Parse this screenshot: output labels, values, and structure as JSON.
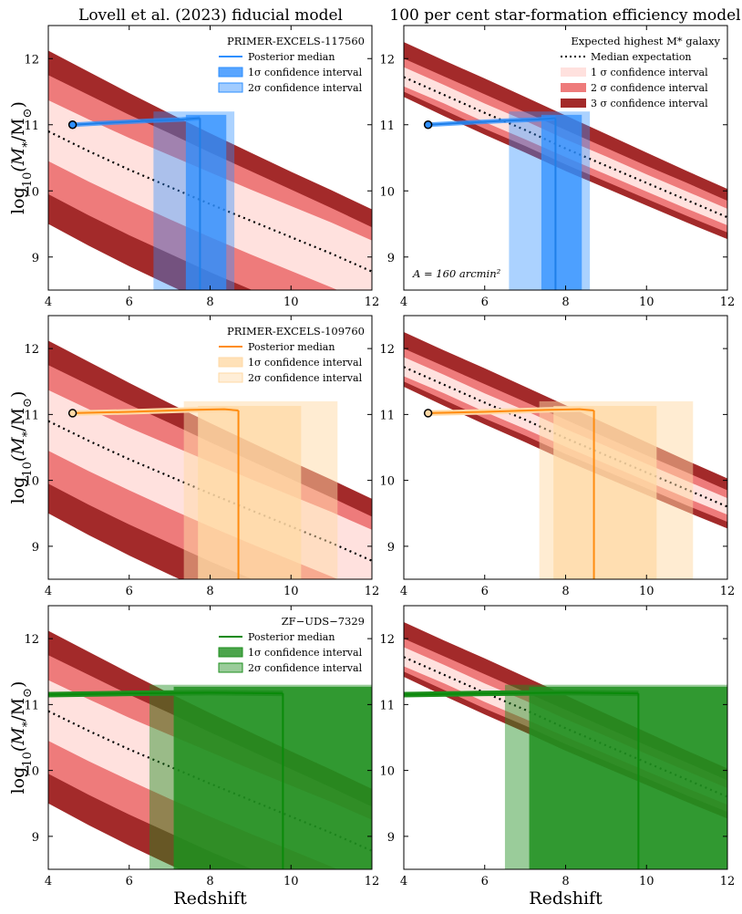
{
  "figure": {
    "column_titles": [
      "Lovell et al. (2023) fiducial model",
      "100 per cent star-formation efficiency model"
    ],
    "ylabel_base": "log",
    "ylabel_sub": "10",
    "ylabel_rest": "(M",
    "ylabel_star": "*",
    "ylabel_slash": "/M",
    "ylabel_sun": "⊙",
    "ylabel_end": ")",
    "xlabel": "Redshift",
    "area_label_prefix": "A = 160 arcmin",
    "area_label_exp": "2"
  },
  "colors": {
    "band1": "#ffe1de",
    "band2": "#ee7b7b",
    "band3": "#a32a2a",
    "blue": "#2e8fff",
    "blue_dark": "#1f7fe8",
    "orange": "#ff8c10",
    "orange_fill": "#ffd9a6",
    "green": "#0a8a0a",
    "green_fill": "#1f8f1f"
  },
  "chart_data": [
    {
      "type": "area",
      "panel": "row1-left",
      "title": "Lovell et al. (2023) fiducial model",
      "xlabel": "",
      "ylabel": "log10(M*/M⊙)",
      "xlim": [
        4,
        12
      ],
      "ylim": [
        8.5,
        12.5
      ],
      "xticks": [
        4,
        6,
        8,
        10,
        12
      ],
      "yticks": [
        9,
        10,
        11,
        12
      ],
      "legend_title": "PRIMER-EXCELS-117560",
      "legend": [
        "Posterior median",
        "1σ confidence interval",
        "2σ confidence interval"
      ],
      "model": "fiducial",
      "source": "blue"
    },
    {
      "type": "area",
      "panel": "row1-right",
      "title": "100 per cent star-formation efficiency model",
      "xlim": [
        4,
        12
      ],
      "ylim": [
        8.5,
        12.5
      ],
      "xticks": [
        4,
        6,
        8,
        10,
        12
      ],
      "yticks": [
        9,
        10,
        11,
        12
      ],
      "legend_title": "Expected highest M* galaxy",
      "legend": [
        "Median expectation",
        "1 σ confidence interval",
        "2 σ confidence interval",
        "3 σ confidence interval"
      ],
      "annotation": "A = 160 arcmin²",
      "model": "efficient",
      "source": "blue"
    },
    {
      "type": "area",
      "panel": "row2-left",
      "xlim": [
        4,
        12
      ],
      "ylim": [
        8.5,
        12.5
      ],
      "xticks": [
        4,
        6,
        8,
        10,
        12
      ],
      "yticks": [
        9,
        10,
        11,
        12
      ],
      "legend_title": "PRIMER-EXCELS-109760",
      "legend": [
        "Posterior median",
        "1σ confidence interval",
        "2σ confidence interval"
      ],
      "model": "fiducial",
      "source": "orange"
    },
    {
      "type": "area",
      "panel": "row2-right",
      "xlim": [
        4,
        12
      ],
      "ylim": [
        8.5,
        12.5
      ],
      "xticks": [
        4,
        6,
        8,
        10,
        12
      ],
      "yticks": [
        9,
        10,
        11,
        12
      ],
      "model": "efficient",
      "source": "orange"
    },
    {
      "type": "area",
      "panel": "row3-left",
      "xlabel": "Redshift",
      "xlim": [
        4,
        12
      ],
      "ylim": [
        8.5,
        12.5
      ],
      "xticks": [
        4,
        6,
        8,
        10,
        12
      ],
      "yticks": [
        9,
        10,
        11,
        12
      ],
      "legend_title": "ZF−UDS−7329",
      "legend": [
        "Posterior median",
        "1σ confidence interval",
        "2σ confidence interval"
      ],
      "model": "fiducial",
      "source": "green"
    },
    {
      "type": "area",
      "panel": "row3-right",
      "xlabel": "Redshift",
      "xlim": [
        4,
        12
      ],
      "ylim": [
        8.5,
        12.5
      ],
      "xticks": [
        4,
        6,
        8,
        10,
        12
      ],
      "yticks": [
        9,
        10,
        11,
        12
      ],
      "model": "efficient",
      "source": "green"
    }
  ],
  "models": {
    "fiducial": {
      "z": [
        4,
        5,
        6,
        7,
        8,
        9,
        10,
        11,
        12
      ],
      "median": [
        10.9,
        10.6,
        10.32,
        10.06,
        9.8,
        9.55,
        9.3,
        9.05,
        8.78
      ],
      "s1_lo": [
        10.45,
        10.14,
        9.85,
        9.57,
        9.3,
        9.04,
        8.79,
        8.54,
        8.28
      ],
      "s1_hi": [
        11.37,
        11.08,
        10.8,
        10.54,
        10.28,
        10.02,
        9.77,
        9.52,
        9.25
      ],
      "s2_lo": [
        9.95,
        9.63,
        9.33,
        9.05,
        8.77,
        8.51,
        8.26,
        8.01,
        7.75
      ],
      "s2_hi": [
        11.75,
        11.45,
        11.15,
        10.87,
        10.58,
        10.3,
        10.02,
        9.74,
        9.45
      ],
      "s3_lo": [
        9.5,
        9.17,
        8.86,
        8.57,
        8.29,
        8.02,
        7.76,
        7.5,
        7.24
      ],
      "s3_hi": [
        12.12,
        11.8,
        11.48,
        11.17,
        10.87,
        10.58,
        10.29,
        10.01,
        9.72
      ]
    },
    "efficient": {
      "z": [
        4,
        5,
        6,
        7,
        8,
        9,
        10,
        11,
        12
      ],
      "median": [
        11.72,
        11.45,
        11.18,
        10.92,
        10.64,
        10.38,
        10.12,
        9.86,
        9.6
      ],
      "s1_lo": [
        11.58,
        11.32,
        11.04,
        10.78,
        10.51,
        10.25,
        9.99,
        9.73,
        9.48
      ],
      "s1_hi": [
        11.87,
        11.6,
        11.32,
        11.06,
        10.78,
        10.52,
        10.25,
        9.99,
        9.73
      ],
      "s2_lo": [
        11.5,
        11.22,
        10.94,
        10.68,
        10.4,
        10.14,
        9.88,
        9.62,
        9.37
      ],
      "s2_hi": [
        12.0,
        11.73,
        11.46,
        11.19,
        10.92,
        10.65,
        10.38,
        10.12,
        9.85
      ],
      "s3_lo": [
        11.42,
        11.13,
        10.85,
        10.58,
        10.3,
        10.04,
        9.78,
        9.52,
        9.27
      ],
      "s3_hi": [
        12.25,
        11.97,
        11.7,
        11.42,
        11.14,
        10.86,
        10.58,
        10.3,
        10.03
      ]
    }
  },
  "sources": {
    "blue": {
      "start_z": 4.6,
      "start_mass": 11.0,
      "track_z": [
        4.6,
        5.5,
        6.5,
        7.3,
        7.75
      ],
      "track_mass": [
        11.0,
        11.03,
        11.06,
        11.08,
        11.1
      ],
      "s1_z": [
        7.4,
        8.4
      ],
      "s1_top_z": [
        6.6,
        7.4,
        7.4,
        8.4
      ],
      "s1_top_m": [
        11.03,
        11.05,
        11.15,
        11.15
      ],
      "s2_z": [
        6.6,
        8.6
      ],
      "s2_top": 11.2,
      "median_drop_z": 7.75
    },
    "orange": {
      "start_z": 4.6,
      "start_mass": 11.02,
      "track_z": [
        4.6,
        6.0,
        7.5,
        8.35,
        8.7
      ],
      "track_mass": [
        11.02,
        11.04,
        11.07,
        11.08,
        11.06
      ],
      "s1_z": [
        7.7,
        10.25
      ],
      "s1_top": 11.13,
      "s2_z": [
        7.35,
        11.15
      ],
      "s2_top": 11.2,
      "median_drop_z": 8.7
    },
    "green": {
      "start_z": 4.0,
      "start_mass": 11.15,
      "track_z": [
        4.0,
        6.0,
        8.0,
        9.8
      ],
      "track_mass": [
        11.15,
        11.17,
        11.18,
        11.17
      ],
      "s1_z": [
        7.1,
        12.0
      ],
      "s1_top": 11.27,
      "s2_z": [
        6.5,
        12.0
      ],
      "s2_top": 11.3,
      "median_drop_z": 9.8
    }
  }
}
